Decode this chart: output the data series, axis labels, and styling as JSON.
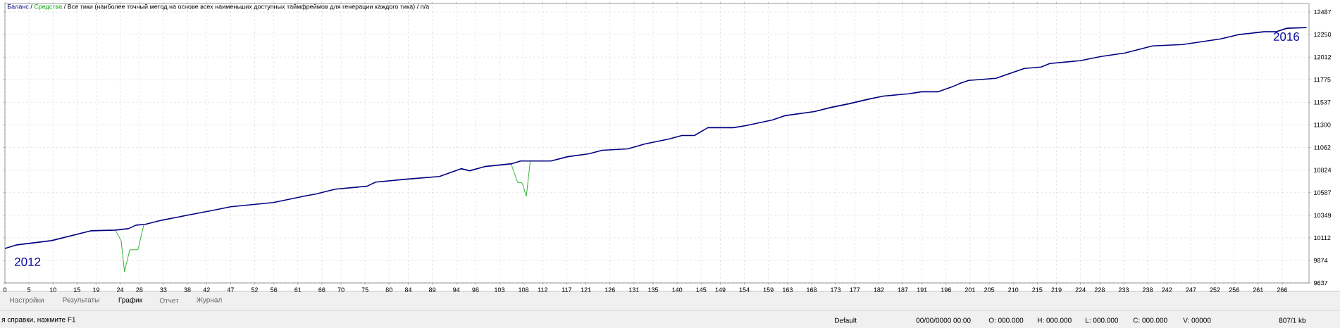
{
  "chart_data": {
    "type": "line",
    "title": "/ Все тики (наиболее точный метод на основе всех наименьших доступных таймфреймов для генерации каждого тика) / n/a",
    "legend": "top left",
    "grid": true,
    "line_style": "solid",
    "xlim": [
      0,
      271.6
    ],
    "ylim": [
      9637,
      12576
    ],
    "xticks": [
      0,
      5,
      10,
      15,
      19,
      24,
      28,
      33,
      38,
      42,
      47,
      52,
      56,
      61,
      66,
      70,
      75,
      80,
      84,
      89,
      94,
      98,
      103,
      108,
      112,
      117,
      121,
      126,
      131,
      135,
      140,
      145,
      149,
      154,
      159,
      163,
      168,
      173,
      177,
      182,
      187,
      191,
      196,
      201,
      205,
      210,
      215,
      219,
      224,
      228,
      233,
      238,
      242,
      247,
      252,
      256,
      261,
      266
    ],
    "yticks": [
      9637,
      9874,
      10112,
      10349,
      10587,
      10824,
      11062,
      11300,
      11537,
      11775,
      12012,
      12250,
      12487
    ],
    "annotations": [
      "2012",
      "2016",
      "Настройки",
      "Результаты",
      "График",
      "Отчет",
      "Журнал",
      "я справки, нажмите F1",
      "Default",
      "00/00/0000 00:00",
      "O: 000.000",
      "H: 000.000",
      "L: 000.000",
      "C: 000.000",
      "V: 00000",
      "807/1 kb",
      "/"
    ],
    "series": [
      {
        "name": "Средства",
        "color": "#00a000",
        "x": [
          23,
          24.2,
          24.9,
          26,
          27.7,
          28.9,
          60,
          105.4,
          106.8,
          107.7,
          108.6,
          109.4
        ],
        "values": [
          10193,
          10082,
          9756,
          9986,
          9986,
          10245,
          null,
          10891,
          10691,
          10691,
          10550,
          10920
        ]
      },
      {
        "name": "Баланс",
        "color": "#000080",
        "x": [
          0,
          2.5,
          9.7,
          18,
          23,
          25.7,
          27.3,
          29.2,
          32.7,
          38,
          43.4,
          47,
          55.9,
          63,
          64.7,
          68.8,
          75.4,
          77.2,
          83.5,
          90.5,
          95,
          96.8,
          99.9,
          105.6,
          107.4,
          113.7,
          117.2,
          121.6,
          124.4,
          129.7,
          133.3,
          138.3,
          141,
          143.6,
          146.4,
          151.7,
          154.3,
          159.8,
          162.4,
          168.6,
          172.2,
          175.8,
          180.2,
          183,
          188.2,
          190.9,
          194.4,
          197.6,
          199,
          200.7,
          206.4,
          212.3,
          215.8,
          217.6,
          223.9,
          228.3,
          233.3,
          239,
          245.3,
          253.2,
          256.9,
          262.2,
          264.8,
          267,
          271.1
        ],
        "values": [
          10000,
          10038,
          10082,
          10186,
          10193,
          10208,
          10245,
          10253,
          10297,
          10349,
          10401,
          10438,
          10483,
          10557,
          10572,
          10624,
          10654,
          10698,
          10728,
          10757,
          10839,
          10817,
          10861,
          10891,
          10920,
          10920,
          10965,
          10995,
          11032,
          11047,
          11099,
          11151,
          11188,
          11188,
          11270,
          11270,
          11292,
          11351,
          11396,
          11440,
          11485,
          11522,
          11574,
          11603,
          11626,
          11648,
          11648,
          11707,
          11737,
          11767,
          11789,
          11893,
          11908,
          11945,
          11975,
          12019,
          12056,
          12130,
          12145,
          12204,
          12249,
          12279,
          12279,
          12316,
          12323
        ]
      }
    ]
  }
}
